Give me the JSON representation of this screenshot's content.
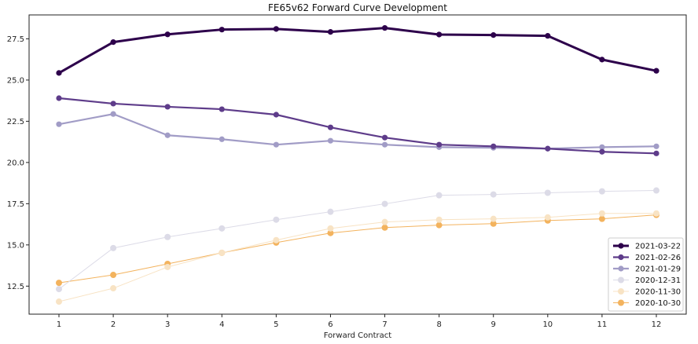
{
  "chart_data": {
    "type": "line",
    "title": "FE65v62 Forward Curve Development",
    "xlabel": "Forward Contract",
    "ylabel": "",
    "x": [
      1,
      2,
      3,
      4,
      5,
      6,
      7,
      8,
      9,
      10,
      11,
      12
    ],
    "xticks": [
      "1",
      "2",
      "3",
      "4",
      "5",
      "6",
      "7",
      "8",
      "9",
      "10",
      "11",
      "12"
    ],
    "xlim": [
      0.45,
      12.55
    ],
    "ylim": [
      10.8,
      28.95
    ],
    "yticks": [
      12.5,
      15.0,
      17.5,
      20.0,
      22.5,
      25.0,
      27.5
    ],
    "ytick_labels": [
      "12.5",
      "15.0",
      "17.5",
      "20.0",
      "22.5",
      "25.0",
      "27.5"
    ],
    "grid": false,
    "legend_position": "lower-right",
    "series": [
      {
        "name": "2021-03-22",
        "color": "#2d004b",
        "weight": "heavy",
        "values": [
          25.43,
          27.3,
          27.77,
          28.06,
          28.1,
          27.92,
          28.16,
          27.76,
          27.73,
          27.68,
          26.24,
          25.56
        ]
      },
      {
        "name": "2021-02-26",
        "color": "#5e3c8a",
        "weight": "medium",
        "values": [
          23.9,
          23.57,
          23.38,
          23.23,
          22.9,
          22.13,
          21.51,
          21.08,
          20.98,
          20.84,
          20.65,
          20.55
        ]
      },
      {
        "name": "2021-01-29",
        "color": "#a19cc6",
        "weight": "medium",
        "values": [
          22.32,
          22.94,
          21.65,
          21.41,
          21.08,
          21.32,
          21.08,
          20.93,
          20.89,
          20.84,
          20.93,
          20.98
        ]
      },
      {
        "name": "2020-12-31",
        "color": "#dcdbe7",
        "weight": "light",
        "values": [
          12.32,
          14.81,
          15.48,
          16.0,
          16.53,
          17.01,
          17.49,
          18.01,
          18.06,
          18.16,
          18.25,
          18.3
        ]
      },
      {
        "name": "2020-11-30",
        "color": "#f8e3c4",
        "weight": "light",
        "values": [
          11.56,
          12.37,
          13.66,
          14.52,
          15.29,
          16.0,
          16.39,
          16.53,
          16.58,
          16.67,
          16.91,
          16.91
        ]
      },
      {
        "name": "2020-10-30",
        "color": "#f3b35e",
        "weight": "light",
        "values": [
          12.7,
          13.18,
          13.85,
          14.52,
          15.14,
          15.72,
          16.05,
          16.2,
          16.29,
          16.48,
          16.58,
          16.82
        ]
      }
    ]
  }
}
